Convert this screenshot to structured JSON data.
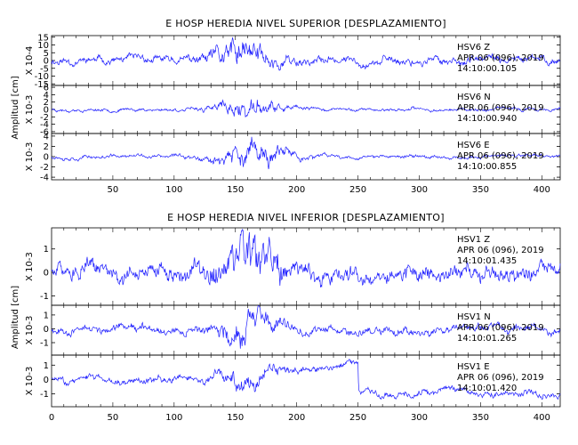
{
  "chart_data": [
    {
      "type": "line",
      "title": "E HOSP HEREDIA NIVEL SUPERIOR [DESPLAZAMIENTO]",
      "ylabel": "Amplitud [cm]",
      "xlim": [
        0,
        415
      ],
      "x_ticks": [
        "50",
        "100",
        "150",
        "200",
        "250",
        "300",
        "350",
        "400"
      ],
      "show_x_zero": false,
      "line_color": "#1f1fff",
      "traces": [
        {
          "name": "HSV6  Z",
          "scale_label": "X 10-4",
          "y_ticks": [
            "15",
            "10",
            "5",
            "0",
            "-5",
            "-10",
            "-15"
          ],
          "ylim": [
            -16,
            16
          ],
          "info": [
            "HSV6  Z",
            "APR 06 (096), 2019",
            "14:10:00.105"
          ],
          "seed": 11,
          "bg": 0.28,
          "burst": 0.85,
          "burst_center": 158,
          "burst_width": 28,
          "step_at": null,
          "step_amp": 0
        },
        {
          "name": "HSV6  N",
          "scale_label": "X 10-3",
          "y_ticks": [
            "6",
            "4",
            "2",
            "0",
            "-2",
            "-4",
            "-6"
          ],
          "ylim": [
            -6.5,
            6.5
          ],
          "info": [
            "HSV6  N",
            "APR 06 (096), 2019",
            "14:10:00.940"
          ],
          "seed": 23,
          "bg": 0.12,
          "burst": 0.6,
          "burst_center": 160,
          "burst_width": 25,
          "step_at": null,
          "step_amp": 0
        },
        {
          "name": "HSV6  E",
          "scale_label": "X 10-3",
          "y_ticks": [
            "4",
            "2",
            "0",
            "-2",
            "-4"
          ],
          "ylim": [
            -4.5,
            4.5
          ],
          "info": [
            "HSV6  E",
            "APR 06 (096), 2019",
            "14:10:00.855"
          ],
          "seed": 37,
          "bg": 0.15,
          "burst": 0.85,
          "burst_center": 165,
          "burst_width": 28,
          "step_at": null,
          "step_amp": 0
        }
      ]
    },
    {
      "type": "line",
      "title": "E HOSP HEREDIA NIVEL INFERIOR [DESPLAZAMIENTO]",
      "ylabel": "Amplitud [cm]",
      "xlim": [
        0,
        415
      ],
      "x_ticks": [
        "0",
        "50",
        "100",
        "150",
        "200",
        "250",
        "300",
        "350",
        "400"
      ],
      "show_x_zero": true,
      "line_color": "#1f1fff",
      "traces": [
        {
          "name": "HSV1  Z",
          "scale_label": "X 10-3",
          "y_ticks": [
            "1",
            "0",
            "-1"
          ],
          "ylim": [
            -1.4,
            1.9
          ],
          "info": [
            "HSV1  Z",
            "APR 06 (096), 2019",
            "14:10:01.435"
          ],
          "seed": 51,
          "bg": 0.4,
          "burst": 0.75,
          "burst_center": 160,
          "burst_width": 30,
          "step_at": null,
          "step_amp": 0
        },
        {
          "name": "HSV1  N",
          "scale_label": "X 10-3",
          "y_ticks": [
            "1",
            "0",
            "-1"
          ],
          "ylim": [
            -1.9,
            1.7
          ],
          "info": [
            "HSV1  N",
            "APR 06 (096), 2019",
            "14:10:01.265"
          ],
          "seed": 67,
          "bg": 0.3,
          "burst": 0.75,
          "burst_center": 158,
          "burst_width": 22,
          "step_at": null,
          "step_amp": 0
        },
        {
          "name": "HSV1  E",
          "scale_label": "X 10-3",
          "y_ticks": [
            "1",
            "0",
            "-1"
          ],
          "ylim": [
            -1.9,
            1.7
          ],
          "info": [
            "HSV1  E",
            "APR 06 (096), 2019",
            "14:10:01.420"
          ],
          "seed": 83,
          "bg": 0.25,
          "burst": 0.45,
          "burst_center": 160,
          "burst_width": 22,
          "step_at": 250,
          "step_amp": 1.6
        }
      ]
    }
  ]
}
